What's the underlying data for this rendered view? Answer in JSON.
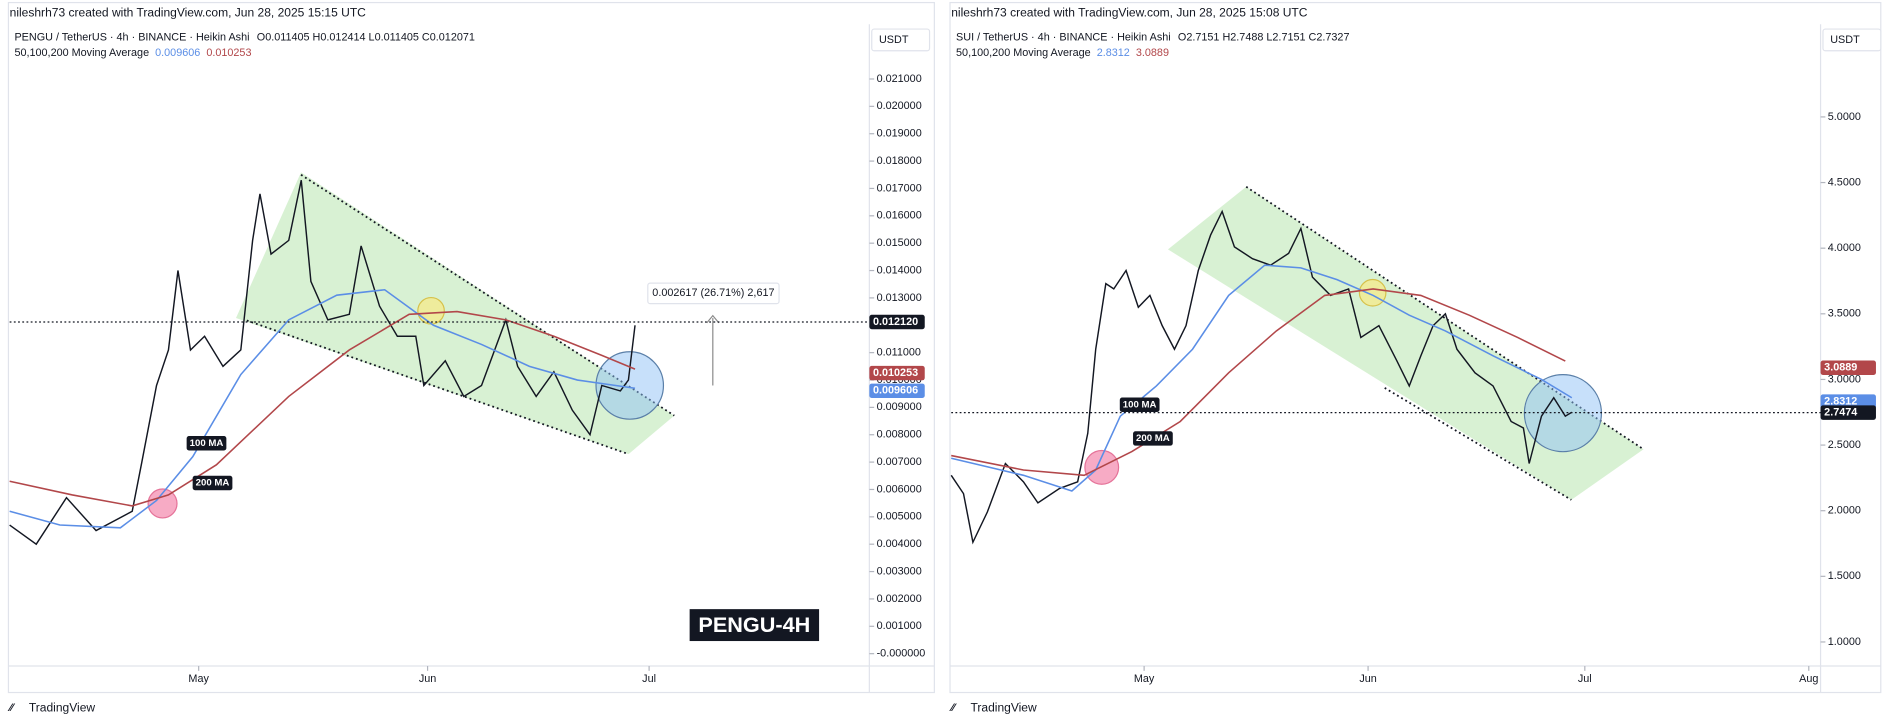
{
  "chart_data": [
    {
      "type": "line",
      "credit": "nileshrh73 created with TradingView.com, Jun 28, 2025 15:15 UTC",
      "symbol": "PENGU / TetherUS · 4h · BINANCE · Heikin Ashi",
      "ohlc": "O0.011405 H0.012414 L0.011405 C0.012071",
      "ma_title": "50,100,200 Moving Average",
      "currency": "USDT",
      "footer": "TradingView",
      "watermark": "PENGU-4H",
      "measure": "0.002617 (26.71%) 2,617",
      "ylim": [
        -0.0001,
        0.023
      ],
      "yticks": [
        {
          "value": 0.021,
          "label": "0.021000"
        },
        {
          "value": 0.02,
          "label": "0.020000"
        },
        {
          "value": 0.019,
          "label": "0.019000"
        },
        {
          "value": 0.018,
          "label": "0.018000"
        },
        {
          "value": 0.017,
          "label": "0.017000"
        },
        {
          "value": 0.016,
          "label": "0.016000"
        },
        {
          "value": 0.015,
          "label": "0.015000"
        },
        {
          "value": 0.014,
          "label": "0.014000"
        },
        {
          "value": 0.013,
          "label": "0.013000"
        },
        {
          "value": 0.012,
          "label": "0.012000"
        },
        {
          "value": 0.011,
          "label": "0.011000"
        },
        {
          "value": 0.01,
          "label": "0.010000"
        },
        {
          "value": 0.009,
          "label": "0.009000"
        },
        {
          "value": 0.008,
          "label": "0.008000"
        },
        {
          "value": 0.007,
          "label": "0.007000"
        },
        {
          "value": 0.006,
          "label": "0.006000"
        },
        {
          "value": 0.005,
          "label": "0.005000"
        },
        {
          "value": 0.004,
          "label": "0.004000"
        },
        {
          "value": 0.003,
          "label": "0.003000"
        },
        {
          "value": 0.002,
          "label": "0.002000"
        },
        {
          "value": 0.001,
          "label": "0.001000"
        },
        {
          "value": 0,
          "label": "-0.000000"
        }
      ],
      "xlim": [
        4.4,
        120.5
      ],
      "xticks": [
        {
          "value": 30,
          "label": "May"
        },
        {
          "value": 61,
          "label": "Jun"
        },
        {
          "value": 91,
          "label": "Jul"
        }
      ],
      "last_price": {
        "value": 0.01212,
        "label": "0.012120"
      },
      "series": [
        {
          "color": "#131722",
          "x": [
            4.4,
            8.0,
            12.1,
            16.1,
            21.0,
            22.3,
            24.3,
            25.9,
            27.2,
            28.9,
            30.8,
            33.3,
            35.7,
            37.3,
            38.3,
            39.8,
            42.2,
            43.9,
            45.2,
            47.5,
            50.4,
            52.0,
            54.5,
            56.9,
            59.4,
            60.5,
            63.4,
            65.9,
            68.3,
            71.6,
            73.2,
            75.7,
            78.1,
            80.6,
            83.0,
            84.6,
            87.1,
            88.2,
            89.1
          ],
          "values": [
            0.0047,
            0.004,
            0.0057,
            0.0045,
            0.0052,
            0.007,
            0.0098,
            0.0111,
            0.014,
            0.0111,
            0.0116,
            0.0105,
            0.0111,
            0.0151,
            0.0168,
            0.0146,
            0.0151,
            0.0173,
            0.0136,
            0.0122,
            0.0124,
            0.0149,
            0.0127,
            0.0116,
            0.0116,
            0.0098,
            0.0107,
            0.0094,
            0.0098,
            0.0122,
            0.0105,
            0.0094,
            0.0103,
            0.0089,
            0.008,
            0.0098,
            0.0096,
            0.01,
            0.012
          ]
        },
        {
          "name": "100 MA",
          "color": "#5b8ee6",
          "tag": 0.009606,
          "x": [
            4.4,
            11.2,
            19.4,
            24.3,
            29.2,
            35.7,
            42.2,
            48.7,
            55.2,
            61.8,
            68.3,
            74.8,
            81.3,
            89.1
          ],
          "values": [
            0.0052,
            0.0047,
            0.0046,
            0.0056,
            0.0072,
            0.0102,
            0.0122,
            0.0131,
            0.0133,
            0.012,
            0.0113,
            0.0105,
            0.01,
            0.0097
          ]
        },
        {
          "name": "200 MA",
          "color": "#b2474a",
          "tag": 0.010253,
          "x": [
            4.4,
            12.9,
            21.0,
            25.9,
            32.4,
            42.2,
            50.4,
            58.5,
            65.0,
            71.6,
            78.1,
            84.6,
            89.1
          ],
          "values": [
            0.0063,
            0.0058,
            0.0054,
            0.0058,
            0.0069,
            0.0094,
            0.0111,
            0.0124,
            0.0125,
            0.0122,
            0.0116,
            0.0109,
            0.0104
          ]
        }
      ]
    },
    {
      "type": "line",
      "credit": "nileshrh73 created with TradingView.com, Jun 28, 2025 15:08 UTC",
      "symbol": "SUI / TetherUS · 4h · BINANCE · Heikin Ashi",
      "ohlc": "O2.7151 H2.7488 L2.7151 C2.7327",
      "ma_title": "50,100,200 Moving Average",
      "currency": "USDT",
      "footer": "TradingView",
      "ylim": [
        0.89,
        5.706
      ],
      "yticks": [
        {
          "value": 5,
          "label": "5.0000"
        },
        {
          "value": 4.5,
          "label": "4.5000"
        },
        {
          "value": 4,
          "label": "4.0000"
        },
        {
          "value": 3.5,
          "label": "3.5000"
        },
        {
          "value": 3,
          "label": "3.0000"
        },
        {
          "value": 2.5,
          "label": "2.5000"
        },
        {
          "value": 2,
          "label": "2.0000"
        },
        {
          "value": 1.5,
          "label": "1.5000"
        },
        {
          "value": 1,
          "label": "1.0000"
        }
      ],
      "xlim": [
        3.3,
        123.3
      ],
      "xticks": [
        {
          "value": 30,
          "label": "May"
        },
        {
          "value": 61,
          "label": "Jun"
        },
        {
          "value": 91,
          "label": "Jul"
        },
        {
          "value": 122,
          "label": "Aug"
        }
      ],
      "last_price": 2.7474,
      "series": [
        {
          "color": "#131722",
          "x": [
            3.3,
            5,
            6.3,
            8.3,
            10.8,
            13.3,
            15.3,
            18.3,
            20.8,
            22.2,
            23.3,
            24.7,
            25.8,
            27.5,
            29.2,
            30.8,
            32.5,
            34.2,
            35.8,
            37.5,
            39.2,
            40.8,
            42.5,
            45,
            47.5,
            50,
            51.7,
            53.3,
            55.8,
            58.3,
            60,
            62.5,
            65,
            66.7,
            68.3,
            70,
            71.7,
            73.3,
            75.8,
            78.3,
            80.8,
            82.5,
            83.3,
            85,
            86.7,
            88.3,
            89.2
          ],
          "values": [
            2.27,
            2.13,
            1.76,
            1.99,
            2.36,
            2.22,
            2.06,
            2.17,
            2.22,
            2.59,
            3.23,
            3.73,
            3.69,
            3.83,
            3.55,
            3.64,
            3.41,
            3.23,
            3.41,
            3.83,
            4.1,
            4.28,
            4.01,
            3.92,
            3.87,
            3.96,
            4.15,
            3.78,
            3.64,
            3.69,
            3.32,
            3.41,
            3.14,
            2.95,
            3.18,
            3.41,
            3.5,
            3.23,
            3.05,
            2.95,
            2.68,
            2.63,
            2.36,
            2.72,
            2.86,
            2.72,
            2.75
          ]
        },
        {
          "name": "100 MA",
          "color": "#5b8ee6",
          "tag": 2.8312,
          "x": [
            3.3,
            13.3,
            20,
            23.3,
            26.7,
            31.7,
            36.7,
            41.7,
            46.7,
            51.7,
            56.7,
            61.7,
            66.7,
            71.7,
            78.3,
            85,
            89.2
          ],
          "values": [
            2.4,
            2.27,
            2.15,
            2.31,
            2.72,
            2.95,
            3.23,
            3.64,
            3.87,
            3.85,
            3.76,
            3.64,
            3.49,
            3.37,
            3.18,
            3.0,
            2.86
          ]
        },
        {
          "name": "200 MA",
          "color": "#b2474a",
          "tag": 3.0889,
          "x": [
            3.3,
            13.3,
            21.7,
            28.3,
            35,
            41.7,
            48.3,
            55,
            61.7,
            68.3,
            75,
            81.7,
            88.3
          ],
          "values": [
            2.42,
            2.31,
            2.27,
            2.45,
            2.68,
            3.05,
            3.37,
            3.64,
            3.69,
            3.64,
            3.49,
            3.32,
            3.14
          ]
        }
      ]
    }
  ]
}
